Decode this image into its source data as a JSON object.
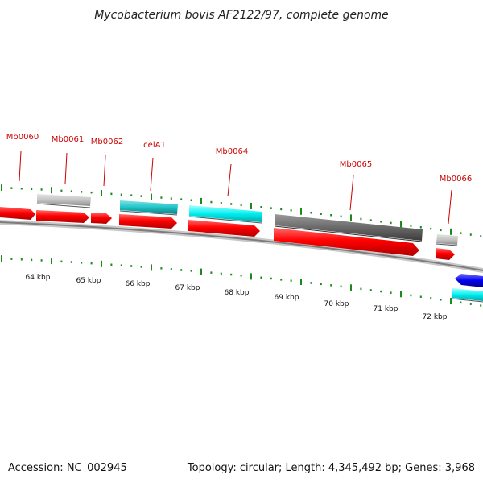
{
  "title": "Mycobacterium bovis AF2122/97, complete genome",
  "footer": {
    "accession": "Accession: NC_002945",
    "topology": "Topology: circular; Length: 4,345,492 bp; Genes: 3,968"
  },
  "colors": {
    "cds": "#ff0000",
    "grey": "#c0c0c0",
    "dark_grey": "#6e6e6e",
    "teal": "#1fc4c8",
    "cyan": "#00f0f0",
    "blue": "#0000ee",
    "tick": "#1a8a1a",
    "label": "#cc0000",
    "backbone": "#8a8a8a"
  },
  "labels": [
    {
      "text": "Mb0060",
      "at": 63.35
    },
    {
      "text": "Mb0061",
      "at": 64.0
    },
    {
      "text": "Mb0062",
      "at": 64.75
    },
    {
      "text": "celA1",
      "at": 65.8
    },
    {
      "text": "Mb0064",
      "at": 67.55
    },
    {
      "text": "Mb0065",
      "at": 69.85
    },
    {
      "text": "Mb0066",
      "at": 71.95
    }
  ],
  "kbp_ticks": [
    "64 kbp",
    "65 kbp",
    "66 kbp",
    "67 kbp",
    "68 kbp",
    "69 kbp",
    "70 kbp",
    "71 kbp",
    "72 kbp"
  ]
}
